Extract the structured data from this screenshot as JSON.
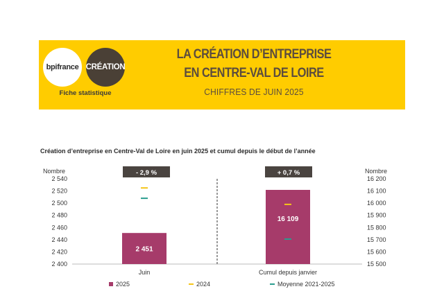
{
  "header": {
    "logo_left": "bpifrance",
    "logo_right": "CRÉATION",
    "fiche": "Fiche statistique",
    "title_line1": "LA CRÉATION D’ENTREPRISE",
    "title_line2": "EN CENTRE-VAL DE LOIRE",
    "subtitle": "CHIFFRES DE JUIN 2025"
  },
  "colors": {
    "banner": "#FFCC00",
    "bar_2025": "#A63B6A",
    "marker_2024": "#F5C518",
    "marker_avg": "#2A9D8F",
    "badge": "#4a4440"
  },
  "chart_data": {
    "type": "bar",
    "title": "Création d’entreprise en Centre-Val de Loire en juin 2025 et cumul depuis le début de l’année",
    "left_axis_label": "Nombre",
    "right_axis_label": "Nombre",
    "left_ylim": [
      2400,
      2540
    ],
    "left_ticks": [
      "2 540",
      "2 520",
      "2 500",
      "2 480",
      "2 460",
      "2 440",
      "2 420",
      "2 400"
    ],
    "right_ylim": [
      15500,
      16200
    ],
    "right_ticks": [
      "16 200",
      "16 100",
      "16 000",
      "15 900",
      "15 800",
      "15 700",
      "15 600",
      "15 500"
    ],
    "categories": [
      "Juin",
      "Cumul depuis janvier"
    ],
    "series": [
      {
        "name": "2025",
        "values": [
          2451,
          16109
        ],
        "labels": [
          "2 451",
          "16 109"
        ]
      },
      {
        "name": "2024",
        "values": [
          2525,
          15990
        ]
      },
      {
        "name": "Moyenne 2021-2025",
        "values": [
          2508,
          15705
        ]
      }
    ],
    "badges": [
      "- 2,9 %",
      "+ 0,7 %"
    ]
  }
}
